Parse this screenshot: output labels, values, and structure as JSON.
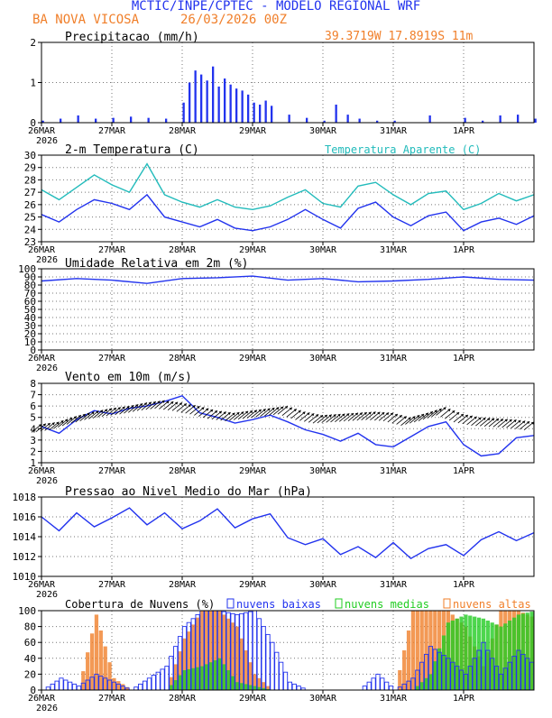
{
  "header": {
    "title": "MCTIC/INPE/CPTEC - MODELO REGIONAL WRF",
    "location": "BA NOVA VICOSA",
    "run": "26/03/2026 00Z",
    "coords": "39.3719W 17.8919S 11m"
  },
  "colors": {
    "title": "#2233ee",
    "orange": "#f07f2a",
    "blue": "#2233ee",
    "cyan": "#22bbbb",
    "green": "#22cc22",
    "black": "#000000"
  },
  "x_axis": {
    "tick_labels": [
      "26MAR",
      "27MAR",
      "28MAR",
      "29MAR",
      "30MAR",
      "31MAR",
      "1APR"
    ],
    "year": "2026"
  },
  "chart_data": [
    {
      "type": "bar",
      "title": "Precipitacao (mm/h)",
      "ylim": [
        0,
        2
      ],
      "yticks": [
        "0",
        "1",
        "2"
      ],
      "hours": [
        0,
        6,
        12,
        18,
        24,
        30,
        36,
        42,
        48,
        50,
        52,
        54,
        56,
        58,
        60,
        62,
        64,
        66,
        68,
        70,
        72,
        74,
        76,
        78,
        84,
        90,
        96,
        100,
        104,
        108,
        114,
        120,
        132,
        144,
        150,
        156,
        162,
        168
      ],
      "values": [
        0.05,
        0.1,
        0.18,
        0.1,
        0.12,
        0.15,
        0.12,
        0.1,
        0.5,
        1.0,
        1.3,
        1.2,
        1.05,
        1.4,
        0.9,
        1.1,
        0.95,
        0.85,
        0.8,
        0.7,
        0.5,
        0.45,
        0.55,
        0.42,
        0.2,
        0.12,
        0.05,
        0.45,
        0.2,
        0.1,
        0.05,
        0.05,
        0.18,
        0.12,
        0.05,
        0.18,
        0.2,
        0.1
      ]
    },
    {
      "type": "line",
      "title": "2-m Temperatura (C)",
      "legend": "Temperatura Aparente (C)",
      "ylim": [
        23,
        30
      ],
      "yticks": [
        "23",
        "24",
        "25",
        "26",
        "27",
        "28",
        "29",
        "30"
      ],
      "hours": [
        0,
        6,
        12,
        18,
        24,
        30,
        36,
        42,
        48,
        54,
        60,
        66,
        72,
        78,
        84,
        90,
        96,
        102,
        108,
        114,
        120,
        126,
        132,
        138,
        144,
        150,
        156,
        162,
        168
      ],
      "series": [
        {
          "name": "2-m Temperatura",
          "values": [
            25.2,
            24.6,
            25.6,
            26.4,
            26.1,
            25.6,
            26.8,
            25.0,
            24.6,
            24.2,
            24.8,
            24.1,
            23.9,
            24.2,
            24.8,
            25.6,
            24.8,
            24.1,
            25.7,
            26.2,
            25.0,
            24.3,
            25.1,
            25.4,
            23.9,
            24.6,
            24.9,
            24.4,
            25.1
          ]
        },
        {
          "name": "Temperatura Aparente",
          "values": [
            27.2,
            26.4,
            27.4,
            28.4,
            27.6,
            27.0,
            29.3,
            26.8,
            26.2,
            25.8,
            26.4,
            25.8,
            25.6,
            25.9,
            26.6,
            27.2,
            26.1,
            25.8,
            27.5,
            27.8,
            26.8,
            26.0,
            26.9,
            27.1,
            25.6,
            26.1,
            26.9,
            26.3,
            26.8
          ]
        }
      ]
    },
    {
      "type": "line",
      "title": "Umidade Relativa em 2m (%)",
      "ylim": [
        0,
        100
      ],
      "yticks": [
        "0",
        "10",
        "20",
        "30",
        "40",
        "50",
        "60",
        "70",
        "80",
        "90",
        "100"
      ],
      "hours": [
        0,
        12,
        24,
        36,
        48,
        60,
        72,
        84,
        96,
        108,
        120,
        132,
        144,
        156,
        168
      ],
      "series": [
        {
          "name": "Umidade Relativa",
          "values": [
            85,
            88,
            86,
            82,
            88,
            89,
            91,
            86,
            88,
            84,
            85,
            87,
            90,
            87,
            86
          ]
        }
      ]
    },
    {
      "type": "line",
      "title": "Vento em 10m (m/s)",
      "ylim": [
        1,
        8
      ],
      "yticks": [
        "1",
        "2",
        "3",
        "4",
        "5",
        "6",
        "7",
        "8"
      ],
      "hours": [
        0,
        6,
        12,
        18,
        24,
        30,
        36,
        42,
        48,
        54,
        60,
        66,
        72,
        78,
        84,
        90,
        96,
        102,
        108,
        114,
        120,
        126,
        132,
        138,
        144,
        150,
        156,
        162,
        168
      ],
      "series": [
        {
          "name": "Velocidade",
          "values": [
            4.2,
            3.6,
            4.8,
            5.6,
            5.3,
            5.8,
            6.0,
            6.4,
            6.9,
            5.4,
            5.0,
            4.5,
            4.8,
            5.2,
            4.6,
            3.9,
            3.5,
            2.9,
            3.6,
            2.6,
            2.4,
            3.3,
            4.2,
            4.6,
            2.6,
            1.6,
            1.8,
            3.2,
            3.4
          ]
        },
        {
          "name": "Direcao (setas)",
          "values": [
            4.4,
            4.6,
            5.1,
            5.5,
            5.8,
            6.0,
            6.3,
            6.5,
            6.3,
            6.0,
            5.6,
            5.4,
            5.6,
            5.8,
            6.0,
            5.5,
            5.2,
            5.3,
            5.4,
            5.5,
            5.4,
            5.0,
            5.4,
            5.9,
            5.3,
            5.0,
            4.9,
            4.8,
            4.6
          ]
        }
      ]
    },
    {
      "type": "line",
      "title": "Pressao ao Nivel Medio do Mar (hPa)",
      "ylim": [
        1010,
        1018
      ],
      "yticks": [
        "1010",
        "1012",
        "1014",
        "1016",
        "1018"
      ],
      "hours": [
        0,
        6,
        12,
        18,
        24,
        30,
        36,
        42,
        48,
        54,
        60,
        66,
        72,
        78,
        84,
        90,
        96,
        102,
        108,
        114,
        120,
        126,
        132,
        138,
        144,
        150,
        156,
        162,
        168
      ],
      "series": [
        {
          "name": "Pressao",
          "values": [
            1016.0,
            1014.6,
            1016.4,
            1015.0,
            1015.9,
            1016.9,
            1015.2,
            1016.4,
            1014.8,
            1015.6,
            1016.8,
            1014.9,
            1015.8,
            1016.3,
            1013.9,
            1013.2,
            1013.8,
            1012.2,
            1013.0,
            1011.9,
            1013.4,
            1011.8,
            1012.8,
            1013.2,
            1012.1,
            1013.7,
            1014.5,
            1013.6,
            1014.4
          ]
        }
      ]
    },
    {
      "type": "bar",
      "title": "Cobertura de Nuvens (%)",
      "ylim": [
        0,
        100
      ],
      "yticks": [
        "0",
        "20",
        "40",
        "60",
        "80",
        "100"
      ],
      "legend": [
        "nuvens baixas",
        "nuvens medias",
        "nuvens altas"
      ],
      "hours": [
        0,
        6,
        12,
        18,
        24,
        30,
        36,
        42,
        48,
        54,
        60,
        66,
        72,
        78,
        84,
        90,
        96,
        102,
        108,
        114,
        120,
        126,
        132,
        138,
        144,
        150,
        156,
        162,
        168
      ],
      "series": [
        {
          "name": "nuvens baixas",
          "values": [
            0,
            15,
            5,
            20,
            10,
            0,
            15,
            30,
            80,
            100,
            100,
            95,
            100,
            60,
            10,
            0,
            0,
            0,
            0,
            20,
            0,
            15,
            55,
            40,
            20,
            60,
            20,
            50,
            30
          ]
        },
        {
          "name": "nuvens medias",
          "values": [
            0,
            0,
            0,
            0,
            0,
            0,
            0,
            0,
            25,
            30,
            40,
            10,
            5,
            0,
            0,
            0,
            0,
            0,
            0,
            0,
            0,
            0,
            20,
            85,
            95,
            90,
            80,
            95,
            100
          ]
        },
        {
          "name": "nuvens altas",
          "values": [
            0,
            0,
            0,
            95,
            15,
            0,
            0,
            0,
            65,
            100,
            100,
            80,
            20,
            0,
            0,
            0,
            0,
            0,
            0,
            0,
            0,
            100,
            100,
            100,
            80,
            30,
            100,
            100,
            90
          ]
        }
      ]
    }
  ]
}
